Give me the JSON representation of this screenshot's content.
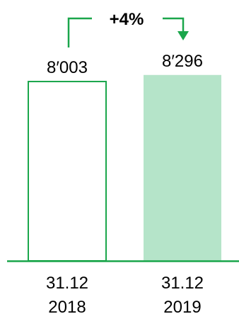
{
  "chart_data": {
    "type": "bar",
    "categories": [
      [
        "31.12",
        "2018"
      ],
      [
        "31.12",
        "2019"
      ]
    ],
    "values": [
      8003,
      8296
    ],
    "value_labels": [
      "8′003",
      "8′296"
    ],
    "annotation": "+4%",
    "ylim": [
      0,
      8700
    ],
    "grid": false,
    "legend": "none"
  },
  "colors": {
    "accent": "#1aa64b",
    "bar_2018_fill": "#ffffff",
    "bar_2018_stroke": "#1aa64b",
    "bar_2019_fill": "#b5e4c9",
    "text": "#000000"
  }
}
